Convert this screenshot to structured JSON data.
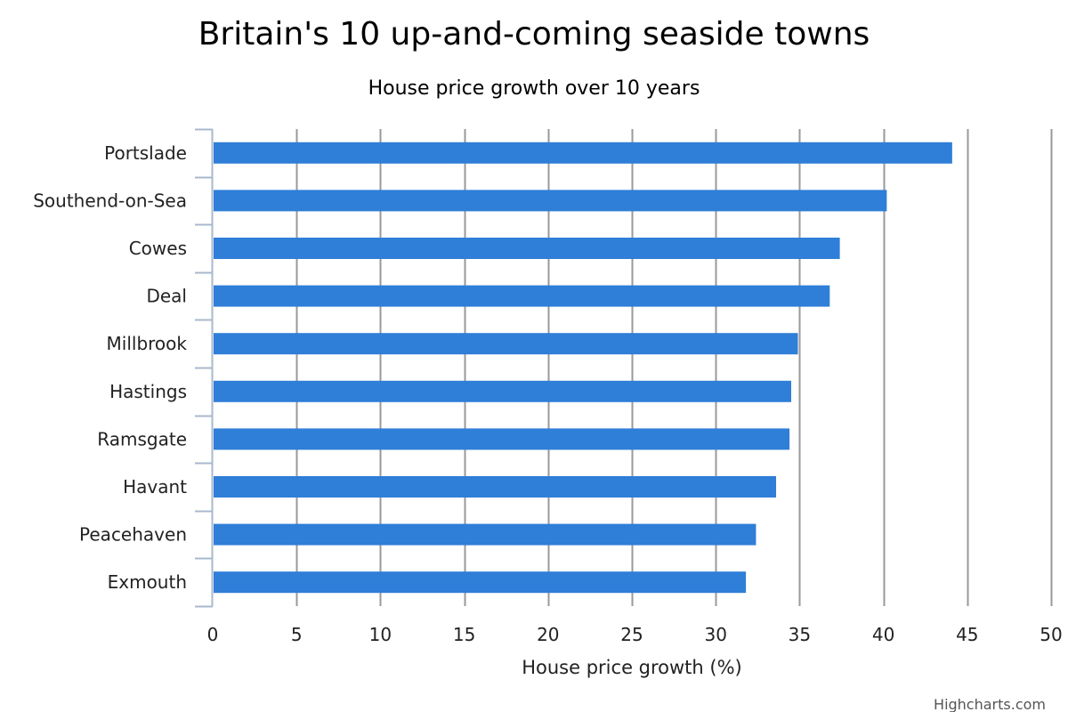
{
  "colors": {
    "bar": "#2f7ed8",
    "grid": "#999999",
    "axis": "#a8b8cc",
    "text": "#222222"
  },
  "credits": "Highcharts.com",
  "chart_data": {
    "type": "bar",
    "orientation": "horizontal",
    "title": "Britain's 10 up-and-coming seaside towns",
    "subtitle": "House price growth over 10 years",
    "xlabel": "House price growth (%)",
    "ylabel": "",
    "categories": [
      "Portslade",
      "Southend-on-Sea",
      "Cowes",
      "Deal",
      "Millbrook",
      "Hastings",
      "Ramsgate",
      "Havant",
      "Peacehaven",
      "Exmouth"
    ],
    "values": [
      44.1,
      40.2,
      37.4,
      36.8,
      34.9,
      34.5,
      34.4,
      33.6,
      32.4,
      31.8
    ],
    "xlim": [
      0,
      50
    ],
    "ticks": [
      "0",
      "5",
      "10",
      "15",
      "20",
      "25",
      "30",
      "35",
      "40",
      "45",
      "50"
    ],
    "grid": true,
    "legend": false
  }
}
